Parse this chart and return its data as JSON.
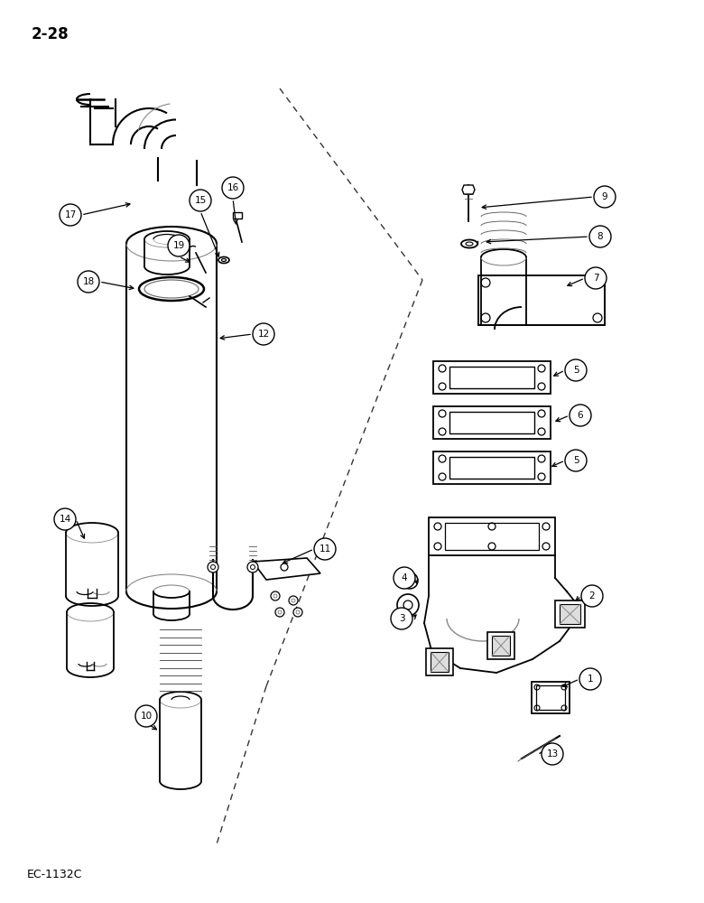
{
  "page_number": "2-28",
  "figure_number": "EC-1132C",
  "background_color": "#ffffff",
  "line_color": "#000000"
}
